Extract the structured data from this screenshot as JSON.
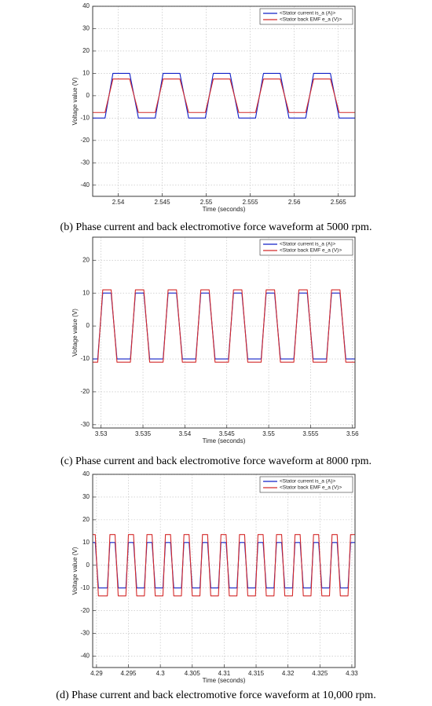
{
  "chart_data": [
    {
      "type": "line",
      "caption": "(b) Phase current and back electromotive force waveform at 5000 rpm.",
      "xlabel": "Time (seconds)",
      "ylabel": "Voltage value (V)",
      "xlim": [
        2.5371,
        2.5669
      ],
      "ylim": [
        -45,
        40
      ],
      "xticks": [
        2.54,
        2.545,
        2.55,
        2.555,
        2.56,
        2.565
      ],
      "yticks": [
        -40,
        -30,
        -20,
        -10,
        0,
        10,
        20,
        30,
        40
      ],
      "grid": true,
      "legend": "upper right",
      "x": [
        2.5371,
        2.5385,
        2.5394,
        2.5413,
        2.5423,
        2.5442,
        2.5451,
        2.547,
        2.548,
        2.5499,
        2.5508,
        2.5527,
        2.5537,
        2.5556,
        2.5565,
        2.5584,
        2.5594,
        2.5613,
        2.5622,
        2.5641,
        2.5651,
        2.5669
      ],
      "series": [
        {
          "name": "<Stator current is_a (A)>",
          "color": "#1020c8",
          "values": [
            -10,
            -10,
            10,
            10,
            -10,
            -10,
            10,
            10,
            -10,
            -10,
            10,
            10,
            -10,
            -10,
            10,
            10,
            -10,
            -10,
            10,
            10,
            -10,
            -10
          ]
        },
        {
          "name": "<Stator back EMF e_a (V)>",
          "color": "#d42a2a",
          "values": [
            -7.5,
            -7.5,
            7.5,
            7.5,
            -7.5,
            -7.5,
            7.5,
            7.5,
            -7.5,
            -7.5,
            7.5,
            7.5,
            -7.5,
            -7.5,
            7.5,
            7.5,
            -7.5,
            -7.5,
            7.5,
            7.5,
            -7.5,
            -7.5
          ]
        }
      ]
    },
    {
      "type": "line",
      "caption": "(c) Phase current and back electromotive force waveform at 8000 rpm.",
      "xlabel": "Time (seconds)",
      "ylabel": "Voltage value (V)",
      "xlim": [
        3.529,
        3.5603
      ],
      "ylim": [
        -31,
        27
      ],
      "xticks": [
        3.53,
        3.535,
        3.54,
        3.545,
        3.55,
        3.555,
        3.56
      ],
      "yticks": [
        -30,
        -20,
        -10,
        0,
        10,
        20
      ],
      "grid": true,
      "legend": "upper right",
      "x": [
        3.529,
        3.5296,
        3.5302,
        3.5312,
        3.5319,
        3.5335,
        3.5341,
        3.5351,
        3.5358,
        3.5374,
        3.538,
        3.539,
        3.5397,
        3.5413,
        3.5419,
        3.5429,
        3.5436,
        3.5452,
        3.5458,
        3.5468,
        3.5475,
        3.5491,
        3.5497,
        3.5507,
        3.5514,
        3.553,
        3.5536,
        3.5546,
        3.5553,
        3.5569,
        3.5575,
        3.5585,
        3.5592,
        3.5603
      ],
      "series": [
        {
          "name": "<Stator current is_a (A)>",
          "color": "#1020c8",
          "values": [
            -10,
            -10,
            10,
            10,
            -10,
            -10,
            10,
            10,
            -10,
            -10,
            10,
            10,
            -10,
            -10,
            10,
            10,
            -10,
            -10,
            10,
            10,
            -10,
            -10,
            10,
            10,
            -10,
            -10,
            10,
            10,
            -10,
            -10,
            10,
            10,
            -10,
            -10
          ]
        },
        {
          "name": "<Stator back EMF e_a (V)>",
          "color": "#d42a2a",
          "values": [
            -11,
            -11,
            11,
            11,
            -11,
            -11,
            11,
            11,
            -11,
            -11,
            11,
            11,
            -11,
            -11,
            11,
            11,
            -11,
            -11,
            11,
            11,
            -11,
            -11,
            11,
            11,
            -11,
            -11,
            11,
            11,
            -11,
            -11,
            11,
            11,
            -11,
            -11
          ]
        }
      ]
    },
    {
      "type": "line",
      "caption": "(d) Phase current and back electromotive force waveform at 10,000 rpm.",
      "xlabel": "Time (seconds)",
      "ylabel": "Voltage value (V)",
      "xlim": [
        4.2894,
        4.3305
      ],
      "ylim": [
        -45,
        40
      ],
      "xticks": [
        4.29,
        4.295,
        4.3,
        4.305,
        4.31,
        4.315,
        4.32,
        4.325,
        4.33
      ],
      "yticks": [
        -40,
        -30,
        -20,
        -10,
        0,
        10,
        20,
        30,
        40
      ],
      "grid": true,
      "legend": "upper right",
      "x": [
        4.2894,
        4.2898,
        4.2903,
        4.2917,
        4.2921,
        4.2929,
        4.2934,
        4.2946,
        4.295,
        4.2958,
        4.2963,
        4.2975,
        4.2979,
        4.2987,
        4.2992,
        4.3004,
        4.3008,
        4.3016,
        4.3021,
        4.3033,
        4.3037,
        4.3045,
        4.305,
        4.3062,
        4.3066,
        4.3074,
        4.3079,
        4.3091,
        4.3095,
        4.3103,
        4.3108,
        4.312,
        4.3124,
        4.3132,
        4.3137,
        4.3149,
        4.3153,
        4.3161,
        4.3166,
        4.3178,
        4.3182,
        4.319,
        4.3195,
        4.3207,
        4.3211,
        4.3219,
        4.3224,
        4.3236,
        4.324,
        4.3248,
        4.3253,
        4.3265,
        4.3269,
        4.3277,
        4.3282,
        4.3294,
        4.3298,
        4.3305
      ],
      "series": [
        {
          "name": "<Stator current is_a (A)>",
          "color": "#1020c8",
          "values": [
            10,
            10,
            -10,
            -10,
            10,
            10,
            -10,
            -10,
            10,
            10,
            -10,
            -10,
            10,
            10,
            -10,
            -10,
            10,
            10,
            -10,
            -10,
            10,
            10,
            -10,
            -10,
            10,
            10,
            -10,
            -10,
            10,
            10,
            -10,
            -10,
            10,
            10,
            -10,
            -10,
            10,
            10,
            -10,
            -10,
            10,
            10,
            -10,
            -10,
            10,
            10,
            -10,
            -10,
            10,
            10,
            -10,
            -10,
            10,
            10,
            -10,
            -10,
            10,
            10
          ]
        },
        {
          "name": "<Stator back EMF e_a (V)>",
          "color": "#d42a2a",
          "values": [
            13.5,
            13.5,
            -13.5,
            -13.5,
            13.5,
            13.5,
            -13.5,
            -13.5,
            13.5,
            13.5,
            -13.5,
            -13.5,
            13.5,
            13.5,
            -13.5,
            -13.5,
            13.5,
            13.5,
            -13.5,
            -13.5,
            13.5,
            13.5,
            -13.5,
            -13.5,
            13.5,
            13.5,
            -13.5,
            -13.5,
            13.5,
            13.5,
            -13.5,
            -13.5,
            13.5,
            13.5,
            -13.5,
            -13.5,
            13.5,
            13.5,
            -13.5,
            -13.5,
            13.5,
            13.5,
            -13.5,
            -13.5,
            13.5,
            13.5,
            -13.5,
            -13.5,
            13.5,
            13.5,
            -13.5,
            -13.5,
            13.5,
            13.5,
            -13.5,
            -13.5,
            13.5,
            13.5
          ]
        }
      ]
    }
  ]
}
